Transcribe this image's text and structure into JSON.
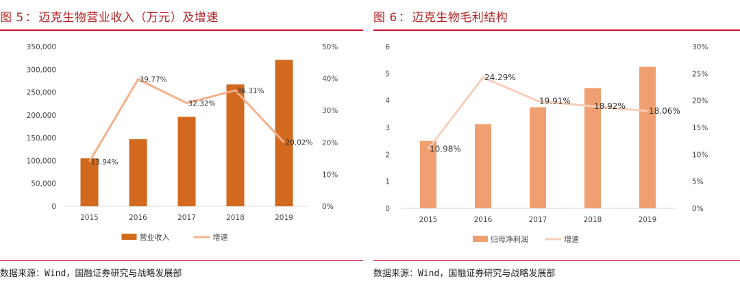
{
  "figures": [
    {
      "label": "图 5",
      "separator": "：",
      "title": "迈克生物营业收入（万元）及增速",
      "source_prefix": "数据来源：",
      "source_wind": "Wind",
      "source_rest": "，国融证券研究与战略发展部"
    },
    {
      "label": "图 6",
      "separator": "：",
      "title": "迈克生物毛利结构",
      "source_prefix": "数据来源：",
      "source_wind": "Wind",
      "source_rest": "，国融证券研究与战略发展部"
    }
  ],
  "chart_data": [
    {
      "type": "bar",
      "categories": [
        "2015",
        "2016",
        "2017",
        "2018",
        "2019"
      ],
      "series": [
        {
          "name": "营业收入",
          "type": "bar",
          "axis": "left",
          "values": [
            105000,
            147000,
            196000,
            267000,
            321000
          ],
          "color": "#d2691e"
        },
        {
          "name": "增速",
          "type": "line",
          "axis": "right",
          "values": [
            13.94,
            39.77,
            32.32,
            36.31,
            20.02
          ],
          "labels": [
            "13.94%",
            "39.77%",
            "32.32%",
            "36.31%",
            "20.02%"
          ],
          "color": "#f4b08a"
        }
      ],
      "ylim": [
        0,
        350000
      ],
      "yticks": [
        "0",
        "50,000",
        "100,000",
        "150,000",
        "200,000",
        "250,000",
        "300,000",
        "350,000"
      ],
      "y2lim": [
        0,
        50
      ],
      "y2ticks": [
        "0%",
        "10%",
        "20%",
        "30%",
        "40%",
        "50%"
      ],
      "grid": false,
      "legend": "bottom"
    },
    {
      "type": "bar",
      "categories": [
        "2015",
        "2016",
        "2017",
        "2018",
        "2019"
      ],
      "series": [
        {
          "name": "归母净利润",
          "type": "bar",
          "axis": "left",
          "values": [
            2.5,
            3.12,
            3.75,
            4.46,
            5.25
          ],
          "color": "#f0a070"
        },
        {
          "name": "增速",
          "type": "line",
          "axis": "right",
          "values": [
            10.98,
            24.29,
            19.91,
            18.92,
            18.06
          ],
          "labels": [
            "10.98%",
            "24.29%",
            "19.91%",
            "18.92%",
            "18.06%"
          ],
          "color": "#f8cdb8"
        }
      ],
      "ylim": [
        0,
        6
      ],
      "yticks": [
        "0",
        "1",
        "2",
        "3",
        "4",
        "5",
        "6"
      ],
      "y2lim": [
        0,
        30
      ],
      "y2ticks": [
        "0%",
        "5%",
        "10%",
        "15%",
        "20%",
        "25%",
        "30%"
      ],
      "grid": false,
      "legend": "bottom"
    }
  ]
}
